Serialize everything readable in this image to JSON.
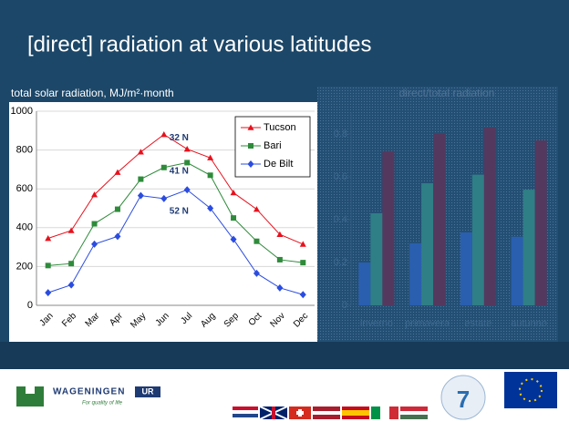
{
  "slide": {
    "title": "[direct] radiation at various latitudes"
  },
  "chart_data": [
    {
      "type": "line",
      "title": "total solar radiation, MJ/m²·month",
      "categories": [
        "Jan",
        "Feb",
        "Mar",
        "Apr",
        "May",
        "Jun",
        "Jul",
        "Aug",
        "Sep",
        "Oct",
        "Nov",
        "Dec"
      ],
      "series": [
        {
          "name": "Tucson",
          "color": "#e8101c",
          "marker": "triangle",
          "values": [
            345,
            385,
            570,
            685,
            790,
            880,
            805,
            760,
            580,
            495,
            365,
            315
          ]
        },
        {
          "name": "Bari",
          "color": "#2e8b3a",
          "marker": "square",
          "values": [
            205,
            215,
            420,
            495,
            650,
            710,
            735,
            670,
            450,
            330,
            235,
            220
          ]
        },
        {
          "name": "De Bilt",
          "color": "#2a4ce0",
          "marker": "diamond",
          "values": [
            65,
            105,
            315,
            355,
            565,
            550,
            595,
            500,
            340,
            165,
            90,
            55
          ]
        }
      ],
      "annotations": [
        "32 N",
        "41 N",
        "52 N"
      ],
      "ylim": [
        0,
        1000
      ],
      "yticks": [
        0,
        200,
        400,
        600,
        800,
        1000
      ],
      "grid": true,
      "legend": "upper right"
    },
    {
      "type": "bar",
      "title": "direct/total radiation",
      "categories": [
        "inverno",
        "primavera",
        "estate",
        "autunno"
      ],
      "series": [
        {
          "color": "#2a5fb0",
          "values": [
            0.2,
            0.29,
            0.34,
            0.32
          ]
        },
        {
          "color": "#2f7f86",
          "values": [
            0.43,
            0.57,
            0.61,
            0.54
          ]
        },
        {
          "color": "#55385e",
          "values": [
            0.72,
            0.8,
            0.83,
            0.77
          ]
        }
      ],
      "ylim": [
        0,
        0.9
      ],
      "yticks": [
        0,
        0.2,
        0.4,
        0.6,
        0.8
      ],
      "grid": false
    }
  ],
  "footer": {
    "logo": "WAGENINGEN",
    "logo_box": "UR",
    "tagline": "For quality of life",
    "programme": "7"
  }
}
